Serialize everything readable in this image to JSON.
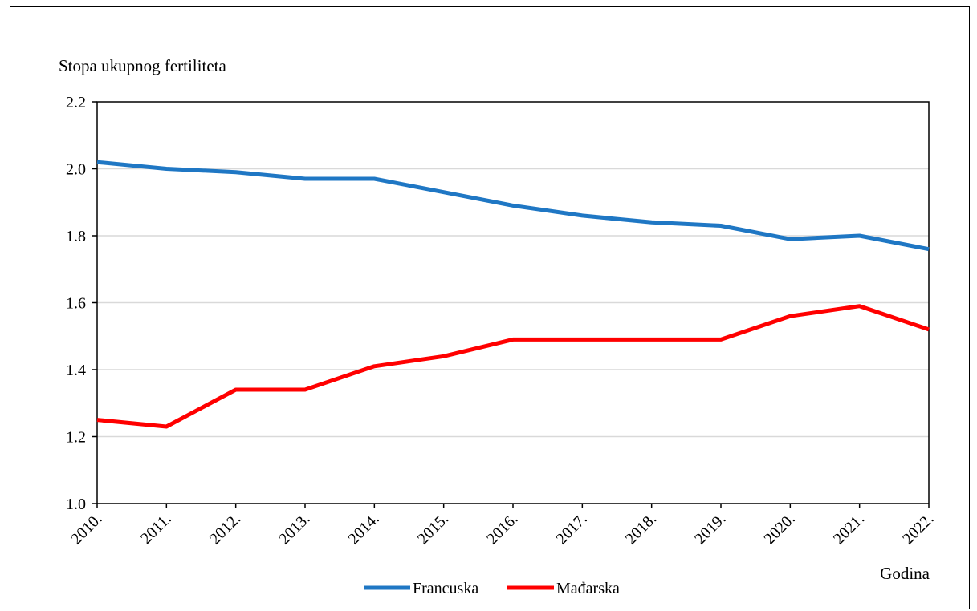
{
  "chart_data": {
    "type": "line",
    "ylabel": "Stopa ukupnog fertiliteta",
    "xlabel": "Godina",
    "x": [
      "2010.",
      "2011.",
      "2012.",
      "2013.",
      "2014.",
      "2015.",
      "2016.",
      "2017.",
      "2018.",
      "2019.",
      "2020.",
      "2021.",
      "2022."
    ],
    "ylim": [
      1.0,
      2.2
    ],
    "yticks": [
      "1.0",
      "1.2",
      "1.4",
      "1.6",
      "1.8",
      "2.0",
      "2.2"
    ],
    "grid": "horizontal",
    "legend_position": "bottom",
    "series": [
      {
        "name": "Francuska",
        "color": "#1f77c4",
        "values": [
          2.02,
          2.0,
          1.99,
          1.97,
          1.97,
          1.93,
          1.89,
          1.86,
          1.84,
          1.83,
          1.79,
          1.8,
          1.76
        ]
      },
      {
        "name": "Mađarska",
        "color": "#ff0000",
        "values": [
          1.25,
          1.23,
          1.34,
          1.34,
          1.41,
          1.44,
          1.49,
          1.49,
          1.49,
          1.49,
          1.56,
          1.59,
          1.52
        ]
      }
    ]
  }
}
